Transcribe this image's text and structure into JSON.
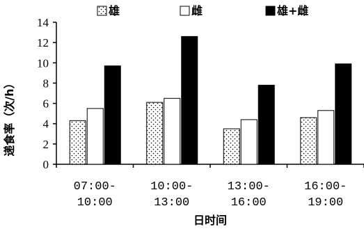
{
  "chart_data": {
    "type": "bar",
    "categories": [
      [
        "07:00-",
        "10:00"
      ],
      [
        "10:00-",
        "13:00"
      ],
      [
        "13:00-",
        "16:00"
      ],
      [
        "16:00-",
        "19:00"
      ]
    ],
    "series": [
      {
        "name": "雄",
        "values": [
          4.3,
          6.1,
          3.5,
          4.6
        ],
        "pattern": "dots"
      },
      {
        "name": "雌",
        "values": [
          5.5,
          6.5,
          4.4,
          5.3
        ],
        "pattern": "white"
      },
      {
        "name": "雄+雌",
        "values": [
          9.7,
          12.6,
          7.8,
          9.9
        ],
        "pattern": "black"
      }
    ],
    "xlabel": "日时间",
    "ylabel": "递食率（次/h）",
    "ylim": [
      0,
      14
    ],
    "yticks": [
      0,
      2,
      4,
      6,
      8,
      10,
      12,
      14
    ],
    "legend_position": "top"
  }
}
